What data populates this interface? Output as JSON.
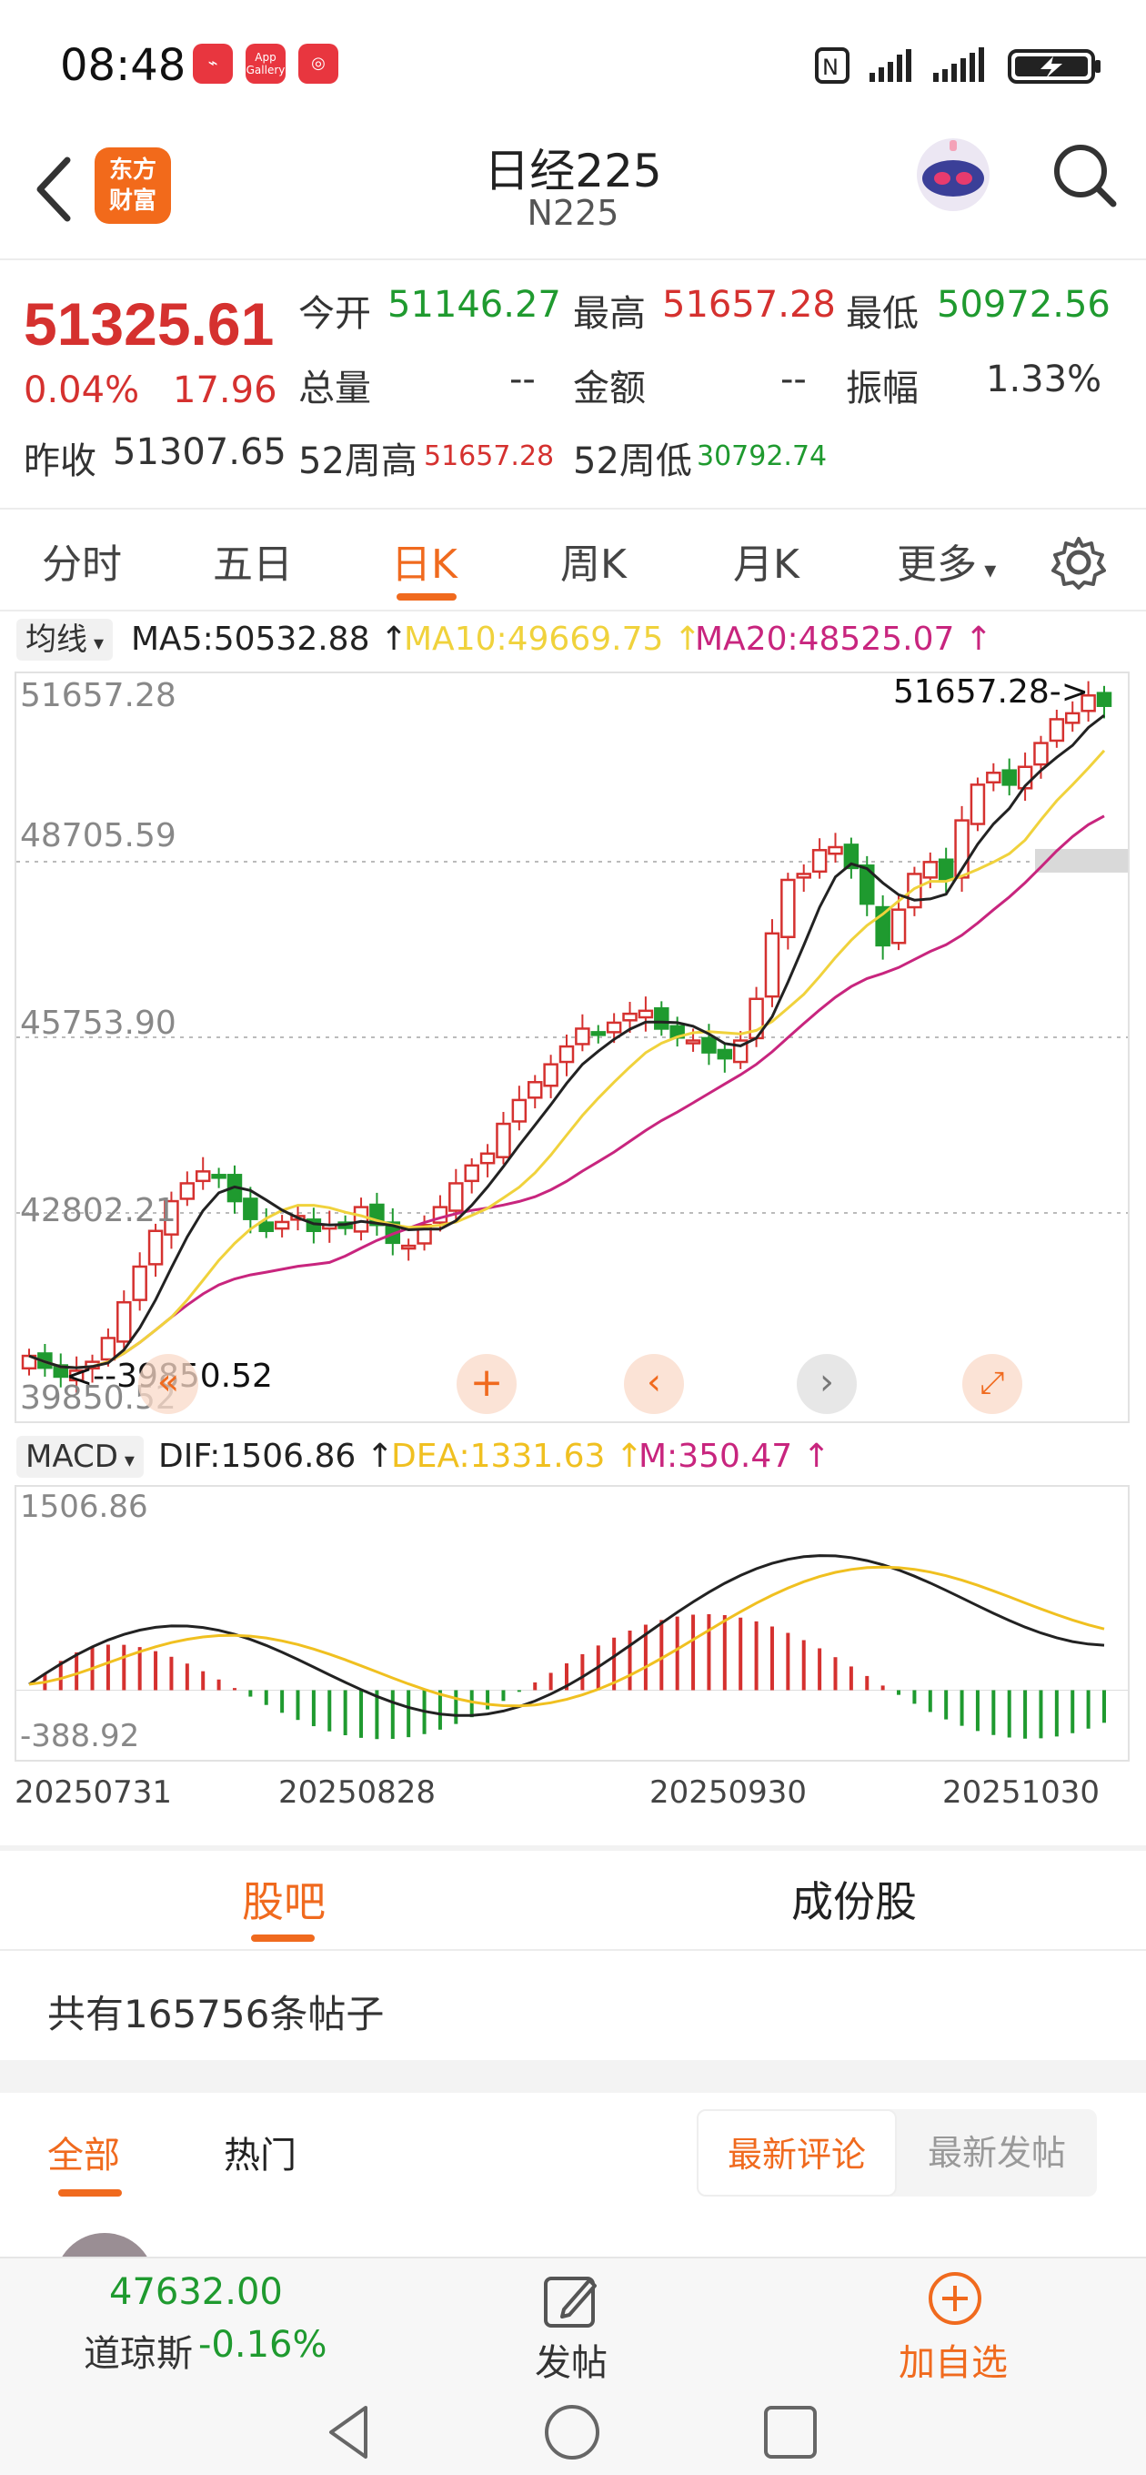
{
  "status_bar": {
    "time": "08:48",
    "apps": [
      "news-app",
      "App Gallery",
      "netease-app"
    ],
    "app_gallery_label": "App Gallery",
    "icons": [
      "nfc-icon",
      "signal-icon",
      "signal-icon",
      "battery-charging-icon"
    ]
  },
  "header": {
    "title": "日经225",
    "subtitle": "N225",
    "brand_line1": "东方",
    "brand_line2": "财富"
  },
  "quote": {
    "price": "51325.61",
    "change_pct": "0.04%",
    "change": "17.96",
    "open_label": "今开",
    "open": "51146.27",
    "high_label": "最高",
    "high": "51657.28",
    "low_label": "最低",
    "low": "50972.56",
    "volume_label": "总量",
    "volume": "--",
    "amount_label": "金额",
    "amount": "--",
    "amplitude_label": "振幅",
    "amplitude": "1.33%",
    "prev_close_label": "昨收",
    "prev_close": "51307.65",
    "week52_high_label": "52周高",
    "week52_high": "51657.28",
    "week52_low_label": "52周低",
    "week52_low": "30792.74"
  },
  "period_tabs": [
    "分时",
    "五日",
    "日K",
    "周K",
    "月K",
    "更多"
  ],
  "active_period": "日K",
  "ma": {
    "selector": "均线",
    "ma5": "MA5:50532.88",
    "ma10": "MA10:49669.75",
    "ma20": "MA20:48525.07"
  },
  "kline": {
    "y_labels": [
      "51657.28",
      "48705.59",
      "45753.90",
      "42802.21",
      "39850.52"
    ],
    "max_marker": "51657.28->",
    "min_marker": "<--39850.52"
  },
  "macd": {
    "selector": "MACD",
    "dif": "DIF:1506.86",
    "dea": "DEA:1331.63",
    "m": "M:350.47",
    "y_top": "1506.86",
    "y_bottom": "-388.92"
  },
  "dates": [
    "20250731",
    "20250828",
    "20250930",
    "20251030"
  ],
  "bar_tabs": [
    "股吧",
    "成份股"
  ],
  "post_count": "共有165756条帖子",
  "filter": {
    "tabs": [
      "全部",
      "热门"
    ],
    "sort": [
      "最新评论",
      "最新发帖"
    ]
  },
  "bottom_nav": {
    "index_value": "47632.00",
    "index_name": "道琼斯",
    "index_change": "-0.16%",
    "post_label": "发帖",
    "add_label": "加自选"
  },
  "colors": {
    "up": "#d5312f",
    "down": "#1f9a2f",
    "accent": "#f06a1e",
    "ma5": "#222222",
    "ma10": "#f0d23c",
    "ma20": "#c8257e"
  }
}
